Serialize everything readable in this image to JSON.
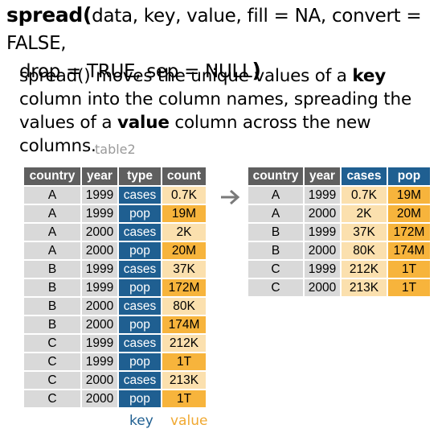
{
  "signature": {
    "fn": "spread",
    "open": "(",
    "args_line1": "data, key, value, fill = NA, convert = FALSE,",
    "args_line2": "drop = TRUE, sep = NULL",
    "close": ")"
  },
  "description": {
    "p1": "spread() moves the unique values of a ",
    "b1": "key",
    "p2": " column into the column names, spreading the values of a ",
    "b2": "value",
    "p3": " column across the new columns."
  },
  "left_table": {
    "name": "table2",
    "headers": [
      "country",
      "year",
      "type",
      "count"
    ],
    "rows": [
      [
        "A",
        "1999",
        "cases",
        "0.7K"
      ],
      [
        "A",
        "1999",
        "pop",
        "19M"
      ],
      [
        "A",
        "2000",
        "cases",
        "2K"
      ],
      [
        "A",
        "2000",
        "pop",
        "20M"
      ],
      [
        "B",
        "1999",
        "cases",
        "37K"
      ],
      [
        "B",
        "1999",
        "pop",
        "172M"
      ],
      [
        "B",
        "2000",
        "cases",
        "80K"
      ],
      [
        "B",
        "2000",
        "pop",
        "174M"
      ],
      [
        "C",
        "1999",
        "cases",
        "212K"
      ],
      [
        "C",
        "1999",
        "pop",
        "1T"
      ],
      [
        "C",
        "2000",
        "cases",
        "213K"
      ],
      [
        "C",
        "2000",
        "pop",
        "1T"
      ]
    ]
  },
  "right_table": {
    "headers": [
      "country",
      "year",
      "cases",
      "pop"
    ],
    "rows": [
      [
        "A",
        "1999",
        "0.7K",
        "19M"
      ],
      [
        "A",
        "2000",
        "2K",
        "20M"
      ],
      [
        "B",
        "1999",
        "37K",
        "172M"
      ],
      [
        "B",
        "2000",
        "80K",
        "174M"
      ],
      [
        "C",
        "1999",
        "212K",
        "1T"
      ],
      [
        "C",
        "2000",
        "213K",
        "1T"
      ]
    ]
  },
  "legend": {
    "key": "key",
    "value": "value"
  },
  "colors": {
    "key": "#1f5f91",
    "value_light": "#fbe0ae",
    "value_dark": "#f7b43c",
    "id": "#d9d9d9",
    "header": "#5f5f5f"
  }
}
